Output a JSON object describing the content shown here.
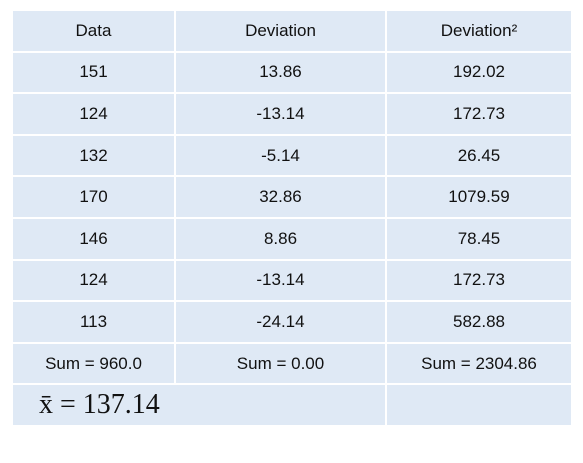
{
  "table": {
    "header": [
      "Data",
      "Deviation",
      "Deviation²"
    ],
    "rows": [
      [
        "151",
        "13.86",
        "192.02"
      ],
      [
        "124",
        "-13.14",
        "172.73"
      ],
      [
        "132",
        "-5.14",
        "26.45"
      ],
      [
        "170",
        "32.86",
        "1079.59"
      ],
      [
        "146",
        "8.86",
        "78.45"
      ],
      [
        "124",
        "-13.14",
        "172.73"
      ],
      [
        "113",
        "-24.14",
        "582.88"
      ],
      [
        "Sum = 960.0",
        "Sum = 0.00",
        "Sum = 2304.86"
      ]
    ],
    "mean": "x̄ = 137.14"
  }
}
